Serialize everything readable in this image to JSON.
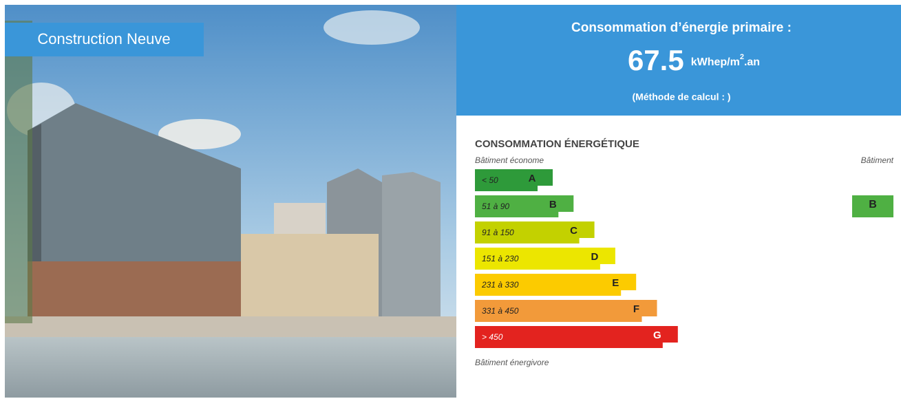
{
  "photo_label": "Construction Neuve",
  "summary": {
    "title": "Consommation d’énergie primaire :",
    "value": "67.5",
    "unit": "kWhep/m",
    "unit_sup": "2",
    "unit_suffix": ".an",
    "method": "(Méthode de calcul : )"
  },
  "scale": {
    "title": "CONSOMMATION ÉNERGÉTIQUE",
    "top_label": "Bâtiment économe",
    "right_label": "Bâtiment",
    "bottom_label": "Bâtiment énergivore",
    "classes": [
      {
        "range": "< 50",
        "letter": "A",
        "color": "#2e9a3a"
      },
      {
        "range": "51 à 90",
        "letter": "B",
        "color": "#4fb043"
      },
      {
        "range": "91 à 150",
        "letter": "C",
        "color": "#c3d100"
      },
      {
        "range": "151 à 230",
        "letter": "D",
        "color": "#ece600"
      },
      {
        "range": "231 à 330",
        "letter": "E",
        "color": "#fccb00"
      },
      {
        "range": "331 à 450",
        "letter": "F",
        "color": "#f29a3a"
      },
      {
        "range": "> 450",
        "letter": "G",
        "color": "#e3231f"
      }
    ]
  },
  "building": {
    "class": "B",
    "color": "#4fb043"
  }
}
